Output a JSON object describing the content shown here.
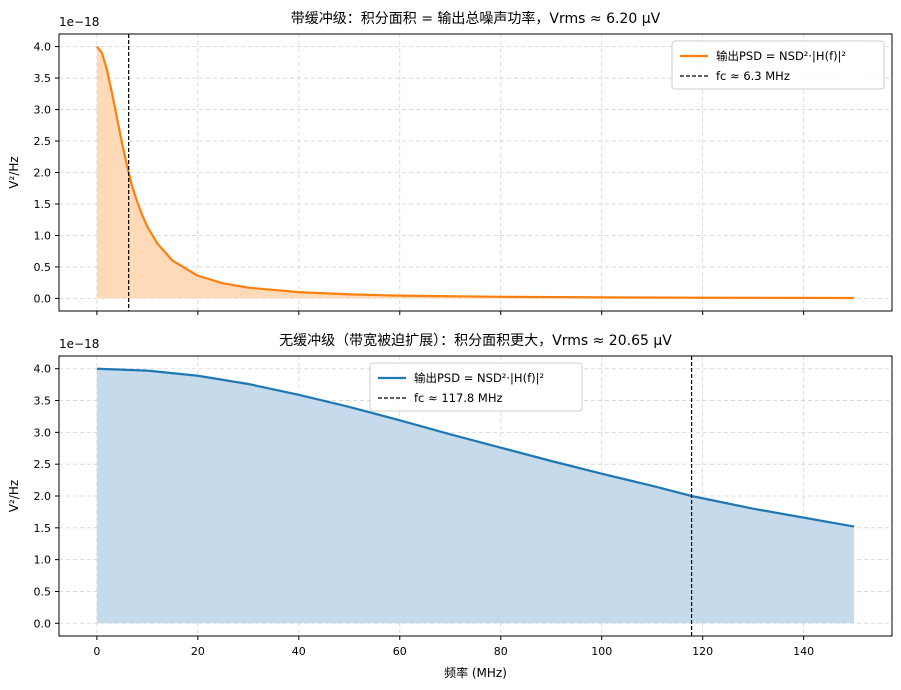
{
  "chart_data": [
    {
      "type": "area",
      "title": "带缓冲级：积分面积 = 输出总噪声功率，Vrms ≈ 6.20 μV",
      "xlabel": "",
      "ylabel": "V²/Hz",
      "y_offset_text": "1e−18",
      "xlim": [
        -7.5,
        157.5
      ],
      "ylim": [
        -0.2,
        4.2
      ],
      "x_ticks": [
        0,
        20,
        40,
        60,
        80,
        100,
        120,
        140
      ],
      "x_tick_labels": [],
      "y_ticks": [
        0.0,
        0.5,
        1.0,
        1.5,
        2.0,
        2.5,
        3.0,
        3.5,
        4.0
      ],
      "y_tick_labels": [
        "0.0",
        "0.5",
        "1.0",
        "1.5",
        "2.0",
        "2.5",
        "3.0",
        "3.5",
        "4.0"
      ],
      "grid": true,
      "legend_position": "top-right",
      "series": [
        {
          "name": "输出PSD = NSD²·|H(f)|²",
          "color": "#ff7f0e",
          "fill_color": "#ffdab9",
          "x": [
            0,
            1,
            2,
            3,
            4,
            5,
            6,
            6.3,
            7,
            8,
            9,
            10,
            12,
            15,
            20,
            25,
            30,
            40,
            50,
            60,
            80,
            100,
            120,
            150
          ],
          "y": [
            4.0,
            3.9,
            3.63,
            3.26,
            2.86,
            2.46,
            2.1,
            2.0,
            1.78,
            1.53,
            1.32,
            1.14,
            0.87,
            0.6,
            0.36,
            0.24,
            0.17,
            0.1,
            0.064,
            0.044,
            0.025,
            0.016,
            0.011,
            0.007
          ]
        }
      ],
      "vline": {
        "label": "fc ≈ 6.3 MHz",
        "x": 6.3,
        "color": "#000000"
      }
    },
    {
      "type": "area",
      "title": "无缓冲级（带宽被迫扩展）：积分面积更大，Vrms ≈ 20.65 μV",
      "xlabel": "频率 (MHz)",
      "ylabel": "V²/Hz",
      "y_offset_text": "1e−18",
      "xlim": [
        -7.5,
        157.5
      ],
      "ylim": [
        -0.2,
        4.2
      ],
      "x_ticks": [
        0,
        20,
        40,
        60,
        80,
        100,
        120,
        140
      ],
      "x_tick_labels": [
        "0",
        "20",
        "40",
        "60",
        "80",
        "100",
        "120",
        "140"
      ],
      "y_ticks": [
        0.0,
        0.5,
        1.0,
        1.5,
        2.0,
        2.5,
        3.0,
        3.5,
        4.0
      ],
      "y_tick_labels": [
        "0.0",
        "0.5",
        "1.0",
        "1.5",
        "2.0",
        "2.5",
        "3.0",
        "3.5",
        "4.0"
      ],
      "grid": true,
      "legend_position": "top-center",
      "series": [
        {
          "name": "输出PSD = NSD²·|H(f)|²",
          "color": "#1f77b4",
          "fill_color": "#c5daeb",
          "x": [
            0,
            10,
            20,
            30,
            40,
            50,
            60,
            70,
            80,
            90,
            100,
            110,
            117.8,
            130,
            140,
            150
          ],
          "y": [
            4.0,
            3.97,
            3.89,
            3.76,
            3.59,
            3.4,
            3.19,
            2.97,
            2.76,
            2.55,
            2.35,
            2.16,
            2.0,
            1.8,
            1.66,
            1.52
          ]
        }
      ],
      "vline": {
        "label": "fc ≈ 117.8 MHz",
        "x": 117.8,
        "color": "#000000"
      }
    }
  ]
}
